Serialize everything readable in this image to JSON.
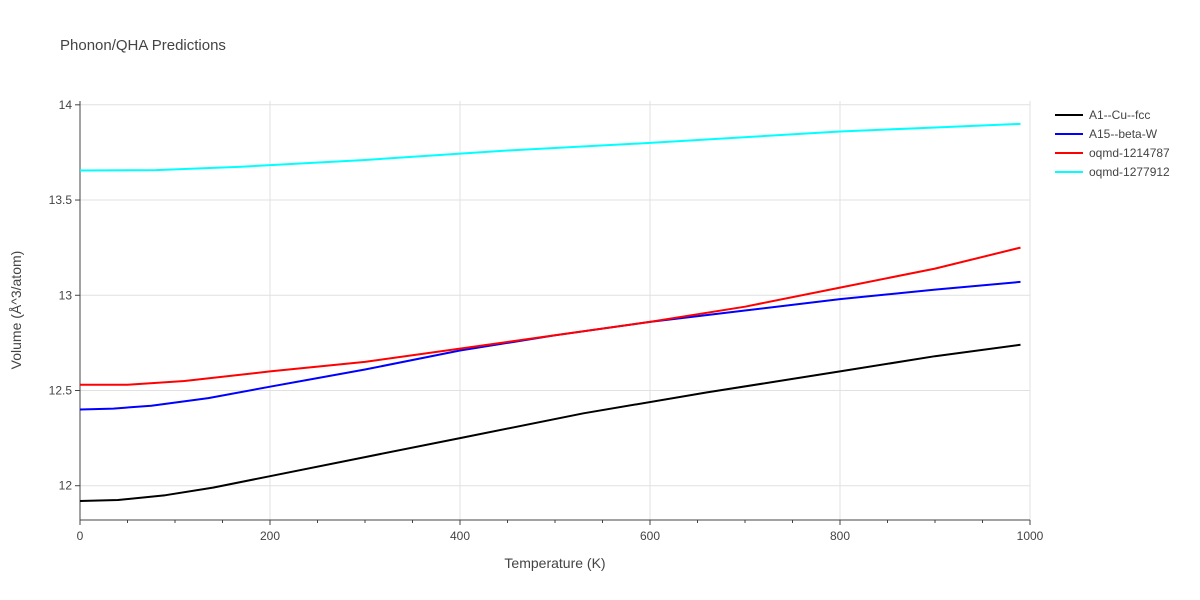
{
  "chart_data": {
    "type": "line",
    "title": "Phonon/QHA Predictions",
    "xlabel": "Temperature (K)",
    "ylabel": "Volume (Å^3/atom)",
    "xlim": [
      0,
      1000
    ],
    "ylim": [
      11.82,
      14.02
    ],
    "x_ticks": [
      0,
      200,
      400,
      600,
      800,
      1000
    ],
    "x_tick_labels": [
      "0",
      "200",
      "400",
      "600",
      "800",
      "1000"
    ],
    "y_ticks": [
      12,
      12.5,
      13,
      13.5,
      14
    ],
    "y_tick_labels": [
      "12",
      "12.5",
      "13",
      "13.5",
      "14"
    ],
    "grid": true,
    "legend_position": "top-right",
    "series": [
      {
        "name": "A1--Cu--fcc",
        "color": "#000000",
        "x": [
          0,
          40,
          90,
          140,
          200,
          300,
          400,
          530,
          660,
          800,
          900,
          990
        ],
        "y": [
          11.92,
          11.925,
          11.95,
          11.99,
          12.05,
          12.15,
          12.25,
          12.38,
          12.49,
          12.6,
          12.68,
          12.74
        ]
      },
      {
        "name": "A15--beta-W",
        "color": "#0000ff",
        "x": [
          0,
          35,
          75,
          135,
          200,
          300,
          400,
          500,
          600,
          700,
          800,
          900,
          990
        ],
        "y": [
          12.4,
          12.405,
          12.42,
          12.46,
          12.52,
          12.61,
          12.71,
          12.79,
          12.86,
          12.92,
          12.98,
          13.03,
          13.07
        ]
      },
      {
        "name": "oqmd-1214787",
        "color": "#ff0000",
        "x": [
          0,
          50,
          110,
          200,
          300,
          400,
          500,
          600,
          700,
          800,
          900,
          990
        ],
        "y": [
          12.53,
          12.53,
          12.55,
          12.6,
          12.65,
          12.72,
          12.79,
          12.86,
          12.94,
          13.04,
          13.14,
          13.25
        ]
      },
      {
        "name": "oqmd-1277912",
        "color": "#00ffff",
        "x": [
          0,
          80,
          170,
          300,
          450,
          600,
          800,
          990
        ],
        "y": [
          13.655,
          13.657,
          13.675,
          13.71,
          13.76,
          13.8,
          13.86,
          13.9
        ]
      }
    ]
  }
}
